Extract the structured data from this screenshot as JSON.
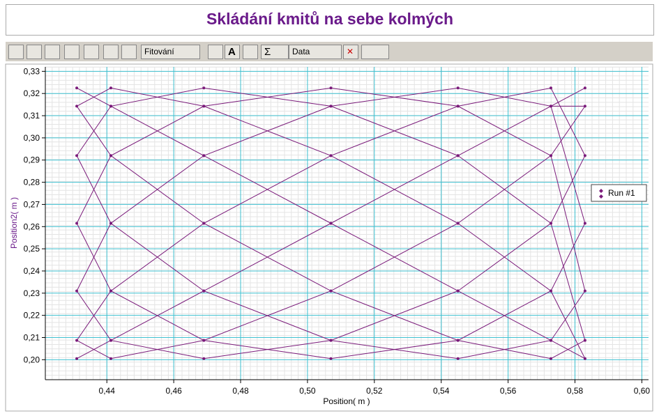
{
  "toolbar": {
    "fit": "Fitování",
    "text": "A",
    "sum": "Σ",
    "data": "Data"
  },
  "chart_data": {
    "type": "line",
    "title": "Skládání kmitů na sebe kolmých",
    "xlabel": "Position( m )",
    "ylabel": "Position2( m )",
    "xlim": [
      0.4216,
      0.602
    ],
    "ylim": [
      0.191,
      0.332
    ],
    "xticks": [
      {
        "value": 0.44,
        "label": "0,44"
      },
      {
        "value": 0.46,
        "label": "0,46"
      },
      {
        "value": 0.48,
        "label": "0,48"
      },
      {
        "value": 0.5,
        "label": "0,50"
      },
      {
        "value": 0.52,
        "label": "0,52"
      },
      {
        "value": 0.54,
        "label": "0,54"
      },
      {
        "value": 0.56,
        "label": "0,56"
      },
      {
        "value": 0.58,
        "label": "0,58"
      },
      {
        "value": 0.6,
        "label": "0,60"
      }
    ],
    "yticks": [
      {
        "value": 0.2,
        "label": "0,20"
      },
      {
        "value": 0.21,
        "label": "0,21"
      },
      {
        "value": 0.22,
        "label": "0,22"
      },
      {
        "value": 0.23,
        "label": "0,23"
      },
      {
        "value": 0.24,
        "label": "0,24"
      },
      {
        "value": 0.25,
        "label": "0,25"
      },
      {
        "value": 0.26,
        "label": "0,26"
      },
      {
        "value": 0.27,
        "label": "0,27"
      },
      {
        "value": 0.28,
        "label": "0,28"
      },
      {
        "value": 0.29,
        "label": "0,29"
      },
      {
        "value": 0.3,
        "label": "0,30"
      },
      {
        "value": 0.31,
        "label": "0,31"
      },
      {
        "value": 0.32,
        "label": "0,32"
      },
      {
        "value": 0.33,
        "label": "0,33"
      }
    ],
    "grid": true,
    "legend": "right",
    "series": [
      {
        "name": "Run #1",
        "color": "#7a1a7a",
        "x": [
          0.583,
          0.5728,
          0.545,
          0.507,
          0.469,
          0.4412,
          0.431,
          0.4412,
          0.469,
          0.507,
          0.545,
          0.5728,
          0.583,
          0.5728,
          0.545,
          0.507,
          0.469,
          0.4412,
          0.431,
          0.4412,
          0.469,
          0.507,
          0.545,
          0.5728,
          0.583,
          0.5728,
          0.545,
          0.507,
          0.469,
          0.4412,
          0.431,
          0.4412,
          0.469,
          0.507,
          0.545,
          0.5728,
          0.583,
          0.5728,
          0.545,
          0.507,
          0.469,
          0.4412,
          0.431,
          0.4412,
          0.469,
          0.507,
          0.545,
          0.5728,
          0.583,
          0.5728,
          0.545,
          0.507,
          0.469,
          0.4412,
          0.431,
          0.4412,
          0.469,
          0.507,
          0.545,
          0.5728,
          0.583,
          0.5728,
          0.545,
          0.507,
          0.469,
          0.4412,
          0.431,
          0.4412,
          0.469,
          0.507,
          0.545,
          0.5728,
          0.583,
          0.5728,
          0.545,
          0.507,
          0.469,
          0.4412,
          0.431,
          0.4412,
          0.469,
          0.507,
          0.545,
          0.5728
        ],
        "values": [
          0.3225,
          0.3143,
          0.292,
          0.2615,
          0.231,
          0.2087,
          0.2005,
          0.2087,
          0.231,
          0.2615,
          0.292,
          0.3143,
          0.3143,
          0.292,
          0.2615,
          0.231,
          0.2087,
          0.2005,
          0.2087,
          0.231,
          0.2615,
          0.292,
          0.3143,
          0.3225,
          0.292,
          0.2615,
          0.231,
          0.2087,
          0.2005,
          0.2087,
          0.231,
          0.2615,
          0.292,
          0.3143,
          0.3225,
          0.3143,
          0.2615,
          0.231,
          0.2087,
          0.2005,
          0.2087,
          0.231,
          0.2615,
          0.292,
          0.3143,
          0.3225,
          0.3143,
          0.292,
          0.231,
          0.2087,
          0.2005,
          0.2087,
          0.231,
          0.2615,
          0.292,
          0.3143,
          0.3225,
          0.3143,
          0.292,
          0.2615,
          0.2087,
          0.2005,
          0.2087,
          0.231,
          0.2615,
          0.292,
          0.3143,
          0.3225,
          0.3143,
          0.292,
          0.2615,
          0.231,
          0.2005,
          0.2087,
          0.231,
          0.2615,
          0.292,
          0.3143,
          0.3225,
          0.3143,
          0.292,
          0.2615,
          0.231,
          0.2087
        ]
      }
    ]
  }
}
